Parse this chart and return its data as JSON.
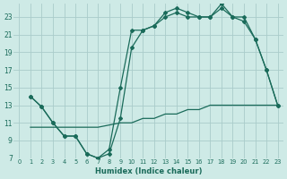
{
  "xlabel": "Humidex (Indice chaleur)",
  "bg_color": "#ceeae6",
  "grid_color": "#aaccca",
  "line_color": "#1a6b5a",
  "xlim": [
    -0.5,
    23.5
  ],
  "ylim": [
    7,
    24.5
  ],
  "xticks": [
    0,
    1,
    2,
    3,
    4,
    5,
    6,
    7,
    8,
    9,
    10,
    11,
    12,
    13,
    14,
    15,
    16,
    17,
    18,
    19,
    20,
    21,
    22,
    23
  ],
  "yticks": [
    7,
    9,
    11,
    13,
    15,
    17,
    19,
    21,
    23
  ],
  "line1_x": [
    1,
    2,
    3,
    4,
    5,
    6,
    7,
    8,
    9,
    10,
    11,
    12,
    13,
    14,
    15,
    16,
    17,
    18,
    19,
    20,
    21,
    22,
    23
  ],
  "line1_y": [
    14,
    12.8,
    11,
    9.5,
    9.5,
    7.5,
    7,
    7.5,
    11.5,
    19.5,
    21.5,
    22,
    23.5,
    24,
    23.5,
    23,
    23,
    24.5,
    23,
    23,
    20.5,
    17,
    13
  ],
  "line2_x": [
    1,
    2,
    3,
    4,
    5,
    6,
    7,
    8,
    9,
    10,
    11,
    12,
    13,
    14,
    15,
    16,
    17,
    18,
    19,
    20,
    21,
    22,
    23
  ],
  "line2_y": [
    14,
    12.8,
    11,
    9.5,
    9.5,
    7.5,
    7,
    8,
    15,
    21.5,
    21.5,
    22,
    23,
    23.5,
    23,
    23,
    23,
    24,
    23,
    22.5,
    20.5,
    17,
    13
  ],
  "line3_x": [
    1,
    3,
    5,
    7,
    9,
    10,
    11,
    12,
    13,
    14,
    15,
    16,
    17,
    18,
    19,
    20,
    21,
    22,
    23
  ],
  "line3_y": [
    10.5,
    10.5,
    10.5,
    10.5,
    11,
    11,
    11.5,
    11.5,
    12,
    12,
    12.5,
    12.5,
    13,
    13,
    13,
    13,
    13,
    13,
    13
  ]
}
